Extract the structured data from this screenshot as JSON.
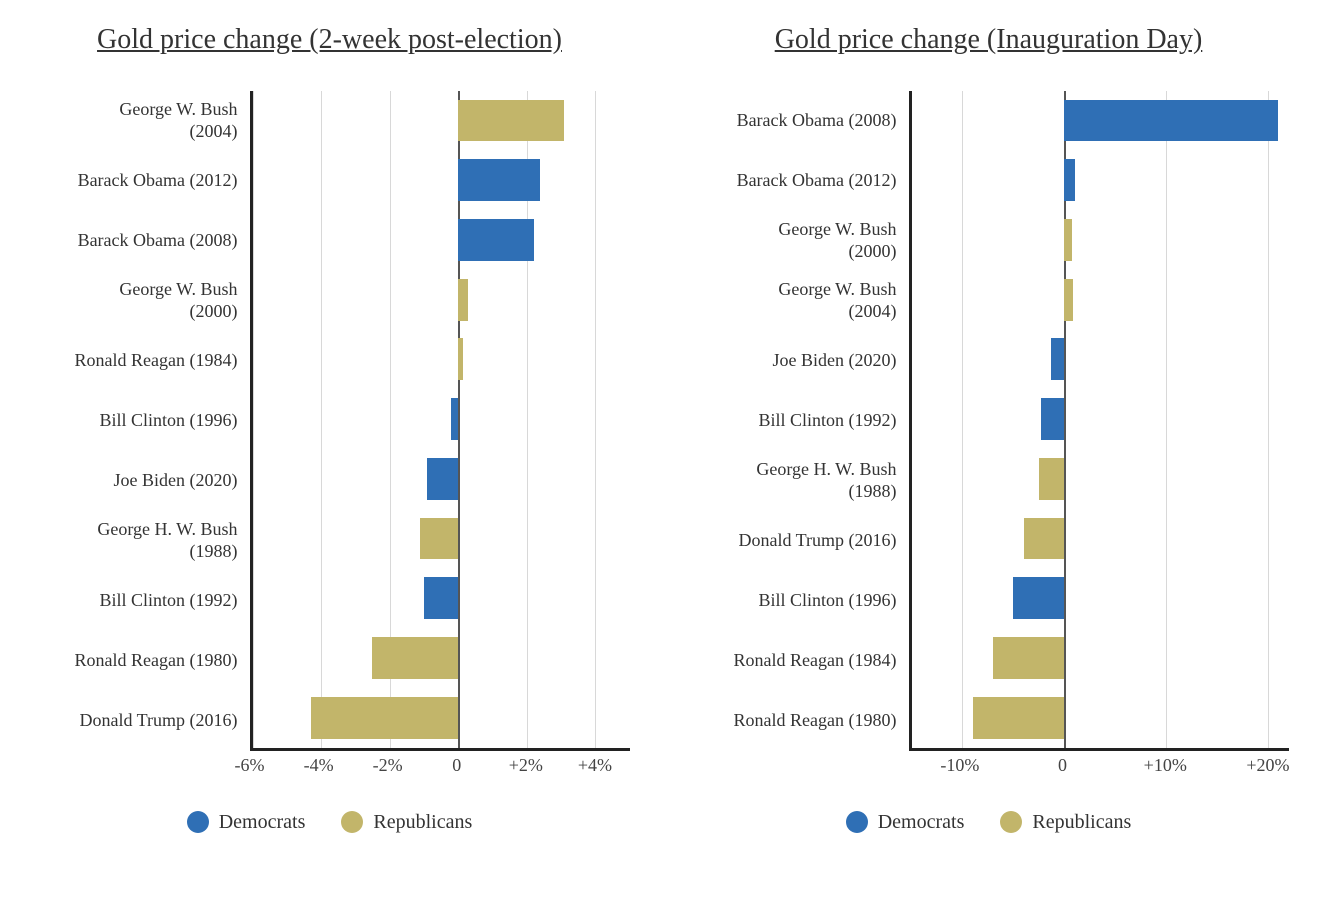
{
  "colors": {
    "democrats": "#2f6fb5",
    "republicans": "#c2b56a",
    "background": "#ffffff",
    "text": "#333333",
    "axis": "#222222",
    "grid": "#d8d8d8",
    "zero_line": "#555555"
  },
  "typography": {
    "family": "Georgia, 'Times New Roman', serif",
    "title_fontsize": 28,
    "label_fontsize": 18,
    "tick_fontsize": 18,
    "legend_fontsize": 20
  },
  "legend": {
    "democrats_label": "Democrats",
    "republicans_label": "Republicans"
  },
  "left_chart": {
    "type": "bar",
    "title": "Gold price change\n(2-week post-election)",
    "xmin": -6,
    "xmax": 5,
    "xticks": [
      {
        "value": -6,
        "label": "-6%"
      },
      {
        "value": -4,
        "label": "-4%"
      },
      {
        "value": -2,
        "label": "-2%"
      },
      {
        "value": 0,
        "label": "0"
      },
      {
        "value": 2,
        "label": "+2%"
      },
      {
        "value": 4,
        "label": "+4%"
      }
    ],
    "bar_width_ratio": 0.7,
    "rows": [
      {
        "label": "George W. Bush\n(2004)",
        "value": 3.1,
        "party": "republicans"
      },
      {
        "label": "Barack Obama (2012)",
        "value": 2.4,
        "party": "democrats"
      },
      {
        "label": "Barack Obama (2008)",
        "value": 2.2,
        "party": "democrats"
      },
      {
        "label": "George W. Bush\n(2000)",
        "value": 0.3,
        "party": "republicans"
      },
      {
        "label": "Ronald Reagan (1984)",
        "value": 0.15,
        "party": "republicans"
      },
      {
        "label": "Bill Clinton (1996)",
        "value": -0.2,
        "party": "democrats"
      },
      {
        "label": "Joe Biden (2020)",
        "value": -0.9,
        "party": "democrats"
      },
      {
        "label": "George H. W. Bush\n(1988)",
        "value": -1.1,
        "party": "republicans"
      },
      {
        "label": "Bill Clinton (1992)",
        "value": -1.0,
        "party": "democrats"
      },
      {
        "label": "Ronald Reagan (1980)",
        "value": -2.5,
        "party": "republicans"
      },
      {
        "label": "Donald Trump (2016)",
        "value": -4.3,
        "party": "republicans"
      }
    ]
  },
  "right_chart": {
    "type": "bar",
    "title": "Gold price change\n(Inauguration Day)",
    "xmin": -15,
    "xmax": 22,
    "xticks": [
      {
        "value": -10,
        "label": "-10%"
      },
      {
        "value": 0,
        "label": "0"
      },
      {
        "value": 10,
        "label": "+10%"
      },
      {
        "value": 20,
        "label": "+20%"
      }
    ],
    "bar_width_ratio": 0.7,
    "rows": [
      {
        "label": "Barack Obama (2008)",
        "value": 21.0,
        "party": "democrats"
      },
      {
        "label": "Barack Obama (2012)",
        "value": 1.0,
        "party": "democrats"
      },
      {
        "label": "George W. Bush\n(2000)",
        "value": 0.8,
        "party": "republicans"
      },
      {
        "label": "George W. Bush\n(2004)",
        "value": 0.9,
        "party": "republicans"
      },
      {
        "label": "Joe Biden (2020)",
        "value": -1.3,
        "party": "democrats"
      },
      {
        "label": "Bill Clinton (1992)",
        "value": -2.3,
        "party": "democrats"
      },
      {
        "label": "George H. W. Bush\n(1988)",
        "value": -2.5,
        "party": "republicans"
      },
      {
        "label": "Donald Trump (2016)",
        "value": -4.0,
        "party": "republicans"
      },
      {
        "label": "Bill Clinton (1996)",
        "value": -5.0,
        "party": "democrats"
      },
      {
        "label": "Ronald Reagan (1984)",
        "value": -7.0,
        "party": "republicans"
      },
      {
        "label": "Ronald Reagan (1980)",
        "value": -9.0,
        "party": "republicans"
      }
    ]
  }
}
